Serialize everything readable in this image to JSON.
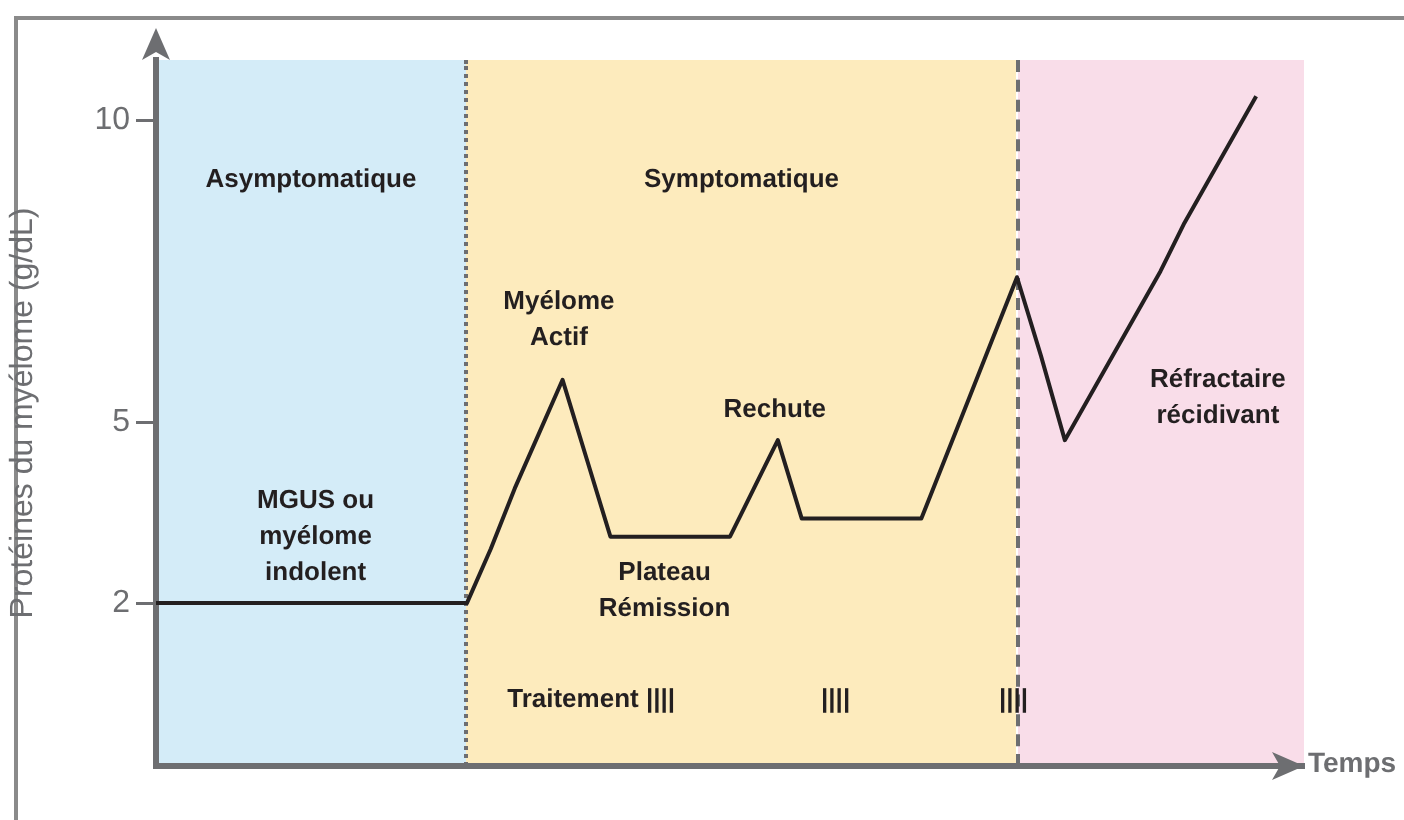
{
  "chart_data": {
    "type": "line",
    "xlabel": "Temps",
    "ylabel": "Protéines du myélome (g/dL)",
    "categories": [
      null,
      null,
      null,
      null,
      null,
      null,
      null,
      null,
      null,
      null,
      null,
      null,
      null,
      null,
      null,
      null,
      null,
      null,
      null,
      null,
      null,
      null,
      null,
      null,
      null,
      null,
      null,
      null,
      null,
      null,
      null,
      null,
      null,
      null,
      null,
      null,
      null,
      null,
      null,
      null,
      null,
      null,
      null,
      null,
      null,
      null,
      null,
      null,
      null
    ],
    "ylim": [
      -0.7,
      11
    ],
    "yticks": [
      2,
      5,
      10
    ],
    "tick_labels": "y",
    "grid": false,
    "legend": false,
    "marker": "none",
    "line_style": "solid",
    "series": [
      {
        "color": "#231f20",
        "values": [
          2,
          2,
          2,
          2,
          2,
          2,
          2,
          2,
          2,
          2,
          2,
          2,
          2,
          2,
          2.9,
          3.9,
          4.8,
          5.7,
          4.4,
          3.1,
          3.1,
          3.1,
          3.1,
          3.1,
          3.1,
          3.9,
          4.7,
          3.4,
          3.4,
          3.4,
          3.4,
          3.4,
          3.4,
          4.4,
          5.4,
          6.4,
          7.4,
          6.1,
          4.7,
          5.4,
          6.1,
          6.8,
          7.5,
          8.3,
          9.0,
          9.7,
          10.4,
          null,
          null
        ]
      }
    ],
    "annotations": [
      "Asymptomatique",
      "Symptomatique",
      "MGUS ou\nmyélome\nindolent",
      "Myélome\nActif",
      "Plateau\nRémission",
      "Rechute",
      "Réfractaire\nrécidivant",
      "Traitement ||||",
      "||||",
      "||||"
    ]
  }
}
